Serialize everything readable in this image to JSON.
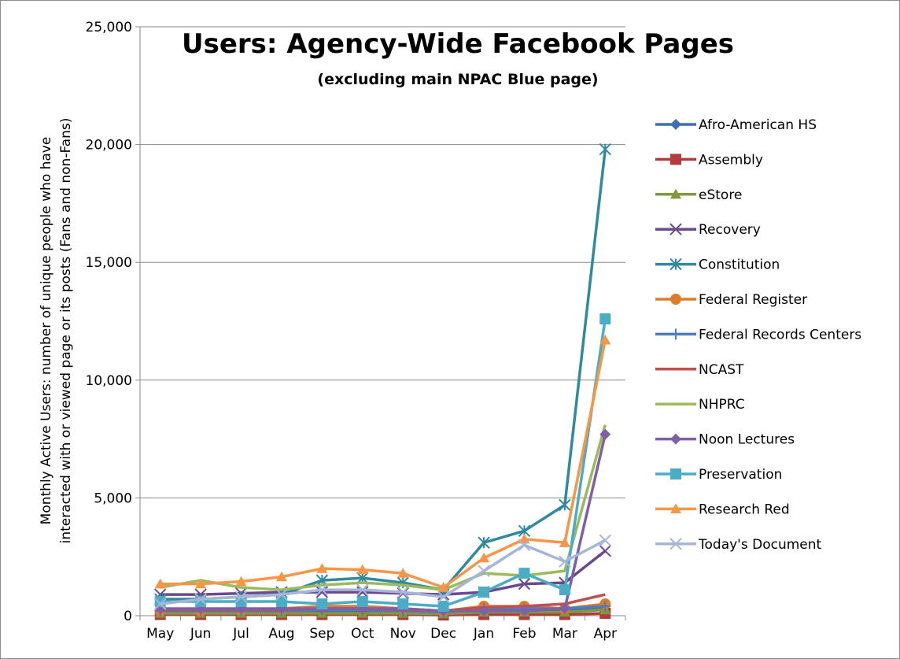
{
  "chart_data": {
    "type": "line",
    "title": "Users: Agency-Wide Facebook Pages",
    "subtitle": "(excluding main NPAC Blue page)",
    "ylabel_lines": [
      "Monthly Active Users: number of unique people who have",
      "interacted with or viewed page or its posts (Fans and non-Fans)"
    ],
    "xlabel": "",
    "categories": [
      "May",
      "Jun",
      "Jul",
      "Aug",
      "Sep",
      "Oct",
      "Nov",
      "Dec",
      "Jan",
      "Feb",
      "Mar",
      "Apr"
    ],
    "ylim": [
      0,
      25000
    ],
    "yticks": [
      0,
      5000,
      10000,
      15000,
      20000,
      25000
    ],
    "ytick_labels": [
      "0",
      "5,000",
      "10,000",
      "15,000",
      "20,000",
      "25,000"
    ],
    "grid": true,
    "legend_position": "right",
    "series": [
      {
        "name": "Afro-American HS",
        "color": "#3f6fb3",
        "marker": "diamond",
        "values": [
          150,
          150,
          150,
          150,
          150,
          150,
          150,
          100,
          250,
          300,
          200,
          300
        ]
      },
      {
        "name": "Assembly",
        "color": "#b23c3c",
        "marker": "square",
        "values": [
          50,
          50,
          50,
          50,
          50,
          50,
          50,
          30,
          50,
          50,
          50,
          100
        ]
      },
      {
        "name": "eStore",
        "color": "#7e9a3b",
        "marker": "triangle",
        "values": [
          100,
          100,
          100,
          100,
          100,
          100,
          100,
          80,
          150,
          150,
          150,
          250
        ]
      },
      {
        "name": "Recovery",
        "color": "#6a4a8c",
        "marker": "x",
        "values": [
          900,
          900,
          950,
          1000,
          1000,
          1000,
          950,
          900,
          1000,
          1350,
          1400,
          2750
        ]
      },
      {
        "name": "Constitution",
        "color": "#2f8aa0",
        "marker": "star",
        "values": [
          700,
          700,
          800,
          900,
          1500,
          1600,
          1400,
          1100,
          3100,
          3600,
          4700,
          19800
        ]
      },
      {
        "name": "Federal Register",
        "color": "#e07b2a",
        "marker": "circle",
        "values": [
          200,
          200,
          250,
          300,
          400,
          400,
          300,
          200,
          400,
          400,
          300,
          500
        ]
      },
      {
        "name": "Federal Records Centers",
        "color": "#4a7ebf",
        "marker": "plus",
        "values": [
          200,
          200,
          200,
          200,
          250,
          250,
          200,
          150,
          300,
          300,
          300,
          400
        ]
      },
      {
        "name": "NCAST",
        "color": "#c0504d",
        "marker": "none",
        "values": [
          250,
          250,
          250,
          250,
          300,
          300,
          250,
          200,
          350,
          400,
          500,
          900
        ]
      },
      {
        "name": "NHPRC",
        "color": "#9bbb59",
        "marker": "none",
        "values": [
          1200,
          1500,
          1200,
          1100,
          1300,
          1400,
          1300,
          1100,
          1800,
          1700,
          1900,
          8100
        ]
      },
      {
        "name": "Noon Lectures",
        "color": "#7f60a8",
        "marker": "diamond",
        "values": [
          300,
          300,
          300,
          300,
          300,
          300,
          300,
          200,
          200,
          200,
          300,
          7700
        ]
      },
      {
        "name": "Preservation",
        "color": "#4bacc6",
        "marker": "square",
        "values": [
          600,
          600,
          600,
          600,
          500,
          600,
          500,
          400,
          1000,
          1800,
          1100,
          12600
        ]
      },
      {
        "name": "Research Red",
        "color": "#f79646",
        "marker": "triangle",
        "values": [
          1350,
          1350,
          1450,
          1650,
          2000,
          1950,
          1800,
          1200,
          2450,
          3250,
          3100,
          11700
        ]
      },
      {
        "name": "Today's Document",
        "color": "#a5b6d9",
        "marker": "x",
        "values": [
          500,
          700,
          800,
          900,
          1100,
          1100,
          1000,
          800,
          1900,
          3000,
          2300,
          3200
        ]
      }
    ]
  }
}
